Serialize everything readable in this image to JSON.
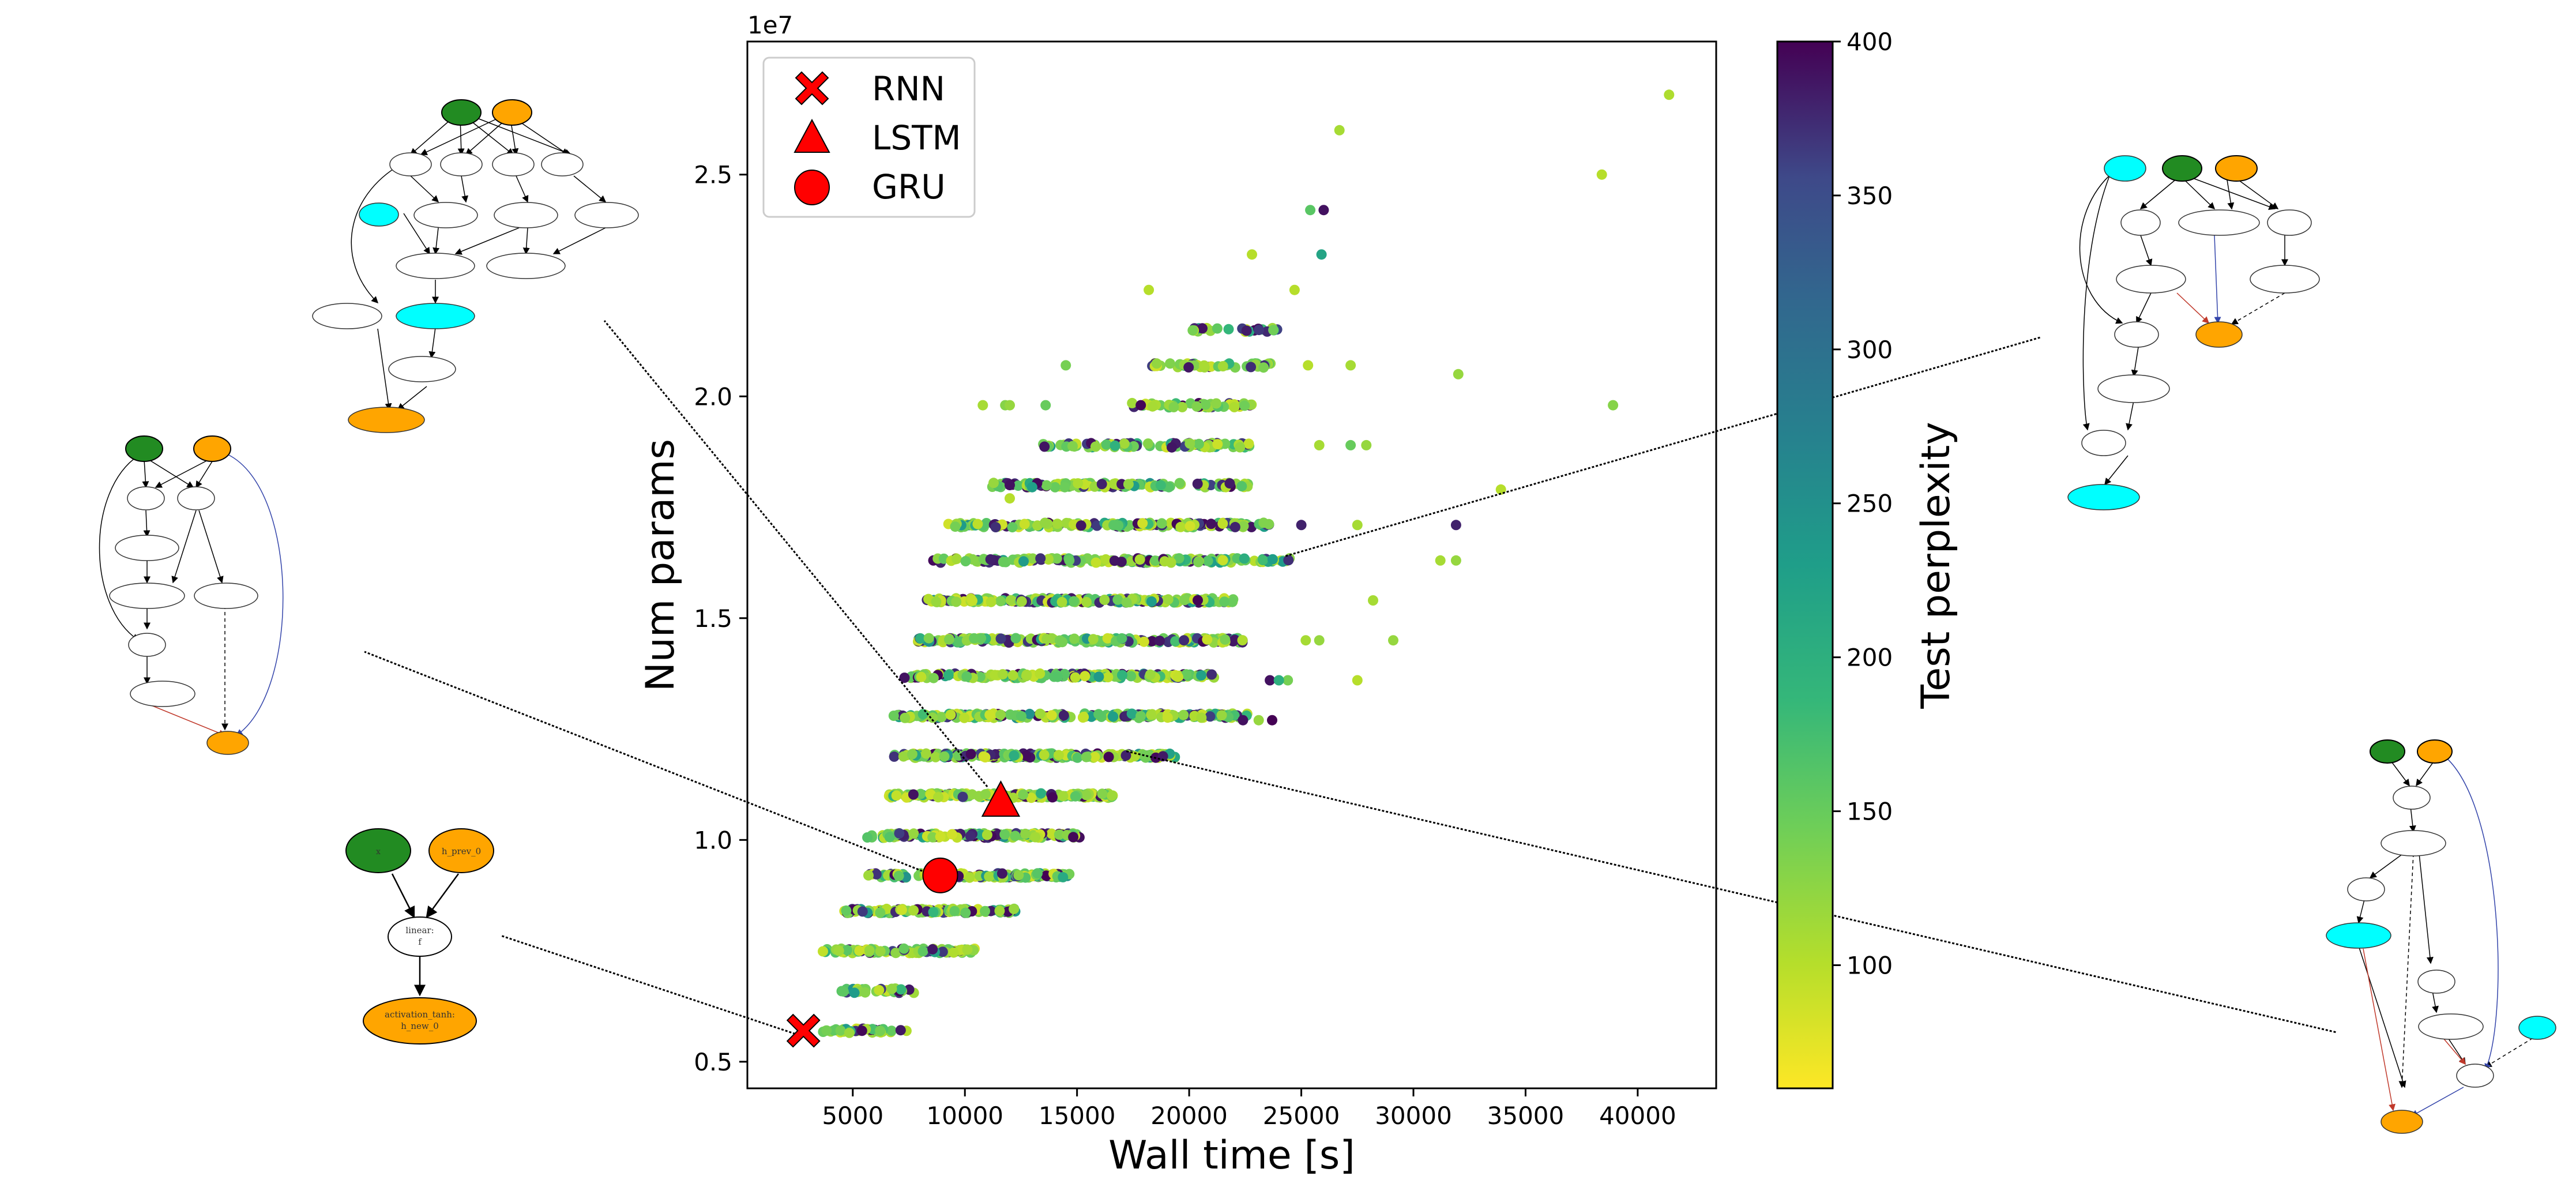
{
  "chart_data": {
    "type": "scatter",
    "xlabel": "Wall time [s]",
    "ylabel": "Num params",
    "y_offset_label": "1e7",
    "colorbar_label": "Test perplexity",
    "xlim": [
      300,
      43500
    ],
    "ylim": [
      4400000.0,
      28000000.0
    ],
    "xticks": [
      5000,
      10000,
      15000,
      20000,
      25000,
      30000,
      35000,
      40000
    ],
    "xtick_labels": [
      "5000",
      "10000",
      "15000",
      "20000",
      "25000",
      "30000",
      "35000",
      "40000"
    ],
    "yticks": [
      5000000.0,
      10000000.0,
      15000000.0,
      20000000.0,
      25000000.0
    ],
    "ytick_labels": [
      "0.5",
      "1.0",
      "1.5",
      "2.0",
      "2.5"
    ],
    "colorbar_range": [
      60,
      400
    ],
    "colorbar_ticks": [
      100,
      150,
      200,
      250,
      300,
      350,
      400
    ],
    "colorbar_tick_labels": [
      "100",
      "150",
      "200",
      "250",
      "300",
      "350",
      "400"
    ],
    "colormap": "viridis_r",
    "legend_position": "upper-left",
    "legend": [
      {
        "name": "RNN",
        "marker": "X",
        "color": "#ff0000"
      },
      {
        "name": "LSTM",
        "marker": "triangle",
        "color": "#ff0000"
      },
      {
        "name": "GRU",
        "marker": "circle",
        "color": "#ff0000"
      }
    ],
    "highlighted": [
      {
        "name": "RNN",
        "x": 2800,
        "y": 5700000.0
      },
      {
        "name": "LSTM",
        "x": 11600,
        "y": 10900000.0
      },
      {
        "name": "GRU",
        "x": 8900,
        "y": 9200000.0
      }
    ],
    "param_bands": [
      {
        "y": 5700000.0,
        "x_min": 3200,
        "x_max": 7500,
        "n": 40
      },
      {
        "y": 6600000.0,
        "x_min": 4300,
        "x_max": 7800,
        "n": 35
      },
      {
        "y": 7500000.0,
        "x_min": 3600,
        "x_max": 10500,
        "n": 90
      },
      {
        "y": 8400000.0,
        "x_min": 4600,
        "x_max": 12400,
        "n": 110
      },
      {
        "y": 9200000.0,
        "x_min": 5300,
        "x_max": 14700,
        "n": 150
      },
      {
        "y": 10100000.0,
        "x_min": 5600,
        "x_max": 15200,
        "n": 160
      },
      {
        "y": 11000000.0,
        "x_min": 6500,
        "x_max": 16800,
        "n": 170
      },
      {
        "y": 11900000.0,
        "x_min": 6800,
        "x_max": 19400,
        "n": 200
      },
      {
        "y": 12800000.0,
        "x_min": 6800,
        "x_max": 22600,
        "n": 210
      },
      {
        "y": 13700000.0,
        "x_min": 7200,
        "x_max": 21300,
        "n": 190
      },
      {
        "y": 14500000.0,
        "x_min": 7800,
        "x_max": 22500,
        "n": 200
      },
      {
        "y": 15400000.0,
        "x_min": 8300,
        "x_max": 22100,
        "n": 190
      },
      {
        "y": 16300000.0,
        "x_min": 8500,
        "x_max": 24500,
        "n": 180
      },
      {
        "y": 17100000.0,
        "x_min": 9200,
        "x_max": 23600,
        "n": 150
      },
      {
        "y": 18000000.0,
        "x_min": 11200,
        "x_max": 22700,
        "n": 130
      },
      {
        "y": 18900000.0,
        "x_min": 13400,
        "x_max": 22700,
        "n": 90
      },
      {
        "y": 19800000.0,
        "x_min": 17000,
        "x_max": 22900,
        "n": 50
      },
      {
        "y": 20700000.0,
        "x_min": 18300,
        "x_max": 23700,
        "n": 45
      },
      {
        "y": 21500000.0,
        "x_min": 20100,
        "x_max": 24000,
        "n": 25
      }
    ],
    "sparse_points": [
      {
        "x": 41400,
        "y": 26800000.0,
        "ppl": 105
      },
      {
        "x": 38400,
        "y": 25000000.0,
        "ppl": 100
      },
      {
        "x": 26700,
        "y": 26000000.0,
        "ppl": 110
      },
      {
        "x": 25400,
        "y": 24200000.0,
        "ppl": 160
      },
      {
        "x": 26000,
        "y": 24200000.0,
        "ppl": 390
      },
      {
        "x": 25900,
        "y": 23200000.0,
        "ppl": 220
      },
      {
        "x": 22800,
        "y": 23200000.0,
        "ppl": 100
      },
      {
        "x": 24700,
        "y": 22400000.0,
        "ppl": 100
      },
      {
        "x": 18200,
        "y": 22400000.0,
        "ppl": 100
      },
      {
        "x": 14500,
        "y": 20700000.0,
        "ppl": 140
      },
      {
        "x": 27200,
        "y": 20700000.0,
        "ppl": 110
      },
      {
        "x": 25300,
        "y": 20700000.0,
        "ppl": 100
      },
      {
        "x": 38900,
        "y": 19800000.0,
        "ppl": 130
      },
      {
        "x": 32000,
        "y": 20500000.0,
        "ppl": 120
      },
      {
        "x": 13600,
        "y": 19800000.0,
        "ppl": 150
      },
      {
        "x": 27900,
        "y": 18900000.0,
        "ppl": 120
      },
      {
        "x": 27200,
        "y": 18900000.0,
        "ppl": 150
      },
      {
        "x": 25800,
        "y": 18900000.0,
        "ppl": 110
      },
      {
        "x": 33900,
        "y": 17900000.0,
        "ppl": 100
      },
      {
        "x": 31900,
        "y": 17100000.0,
        "ppl": 380
      },
      {
        "x": 27500,
        "y": 17100000.0,
        "ppl": 110
      },
      {
        "x": 25000,
        "y": 17100000.0,
        "ppl": 380
      },
      {
        "x": 31200,
        "y": 16300000.0,
        "ppl": 110
      },
      {
        "x": 31900,
        "y": 16300000.0,
        "ppl": 120
      },
      {
        "x": 28200,
        "y": 15400000.0,
        "ppl": 110
      },
      {
        "x": 29100,
        "y": 14500000.0,
        "ppl": 120
      },
      {
        "x": 25200,
        "y": 14500000.0,
        "ppl": 110
      },
      {
        "x": 25800,
        "y": 14500000.0,
        "ppl": 120
      },
      {
        "x": 27500,
        "y": 13600000.0,
        "ppl": 100
      },
      {
        "x": 24400,
        "y": 13600000.0,
        "ppl": 140
      },
      {
        "x": 23600,
        "y": 13600000.0,
        "ppl": 390
      },
      {
        "x": 24000,
        "y": 13600000.0,
        "ppl": 200
      },
      {
        "x": 23100,
        "y": 12700000.0,
        "ppl": 120
      },
      {
        "x": 22400,
        "y": 12700000.0,
        "ppl": 390
      },
      {
        "x": 23700,
        "y": 12700000.0,
        "ppl": 400
      },
      {
        "x": 12000,
        "y": 18000000.0,
        "ppl": 390
      },
      {
        "x": 12000,
        "y": 17700000.0,
        "ppl": 100
      },
      {
        "x": 10800,
        "y": 19800000.0,
        "ppl": 110
      },
      {
        "x": 11800,
        "y": 19800000.0,
        "ppl": 130
      },
      {
        "x": 12000,
        "y": 19800000.0,
        "ppl": 120
      }
    ],
    "graph_callouts": [
      {
        "name": "rnn-cell-graph",
        "x": 2600,
        "y": 5600000.0
      },
      {
        "name": "gru-cell-graph",
        "x": 8600,
        "y": 9200000.0
      },
      {
        "name": "lstm-cell-graph",
        "x": 11000,
        "y": 11200000.0
      },
      {
        "name": "discovered-cell-graph-mid",
        "x": 17200,
        "y": 12000000.0
      },
      {
        "name": "discovered-cell-graph-top",
        "x": 24300,
        "y": 16400000.0
      }
    ]
  },
  "graphs": {
    "rnn_cell": {
      "nodes": [
        {
          "id": "x",
          "label": "x",
          "color": "#228b22"
        },
        {
          "id": "h_prev",
          "label": "h_prev_0",
          "color": "#ffa500"
        },
        {
          "id": "linear",
          "label": "linear:\nf",
          "color": "#ffffff"
        },
        {
          "id": "act",
          "label": "activation_tanh:\nh_new_0",
          "color": "#ffa500"
        }
      ]
    },
    "colors": {
      "input": "#228b22",
      "hidden": "#ffa500",
      "memory": "#00ffff",
      "highlight": "#ff0000"
    }
  }
}
